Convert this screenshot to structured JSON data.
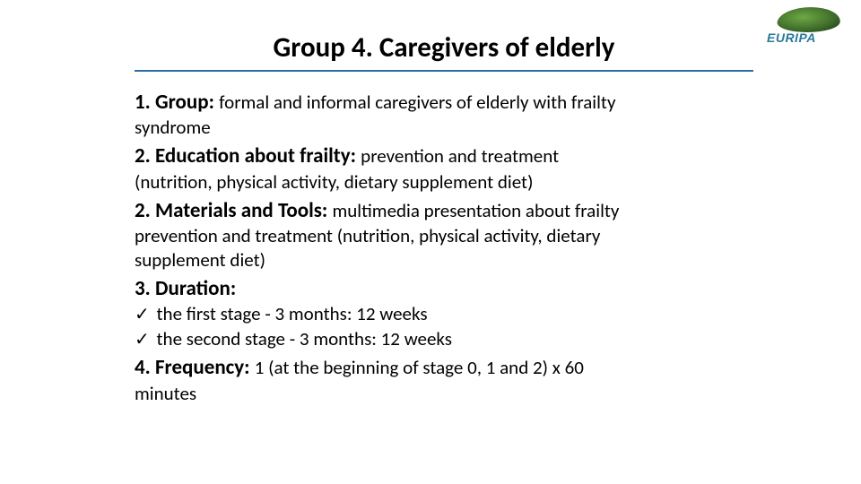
{
  "logo": {
    "text": "EURIPA"
  },
  "title": "Group 4. Caregivers of elderly",
  "items": [
    {
      "label": "1. Group: ",
      "after": "formal and informal caregivers of elderly with frailty",
      "cont": [
        "syndrome"
      ]
    },
    {
      "label": "2. Education about frailty: ",
      "after": "prevention and treatment",
      "cont": [
        "(nutrition, physical activity, dietary supplement diet)"
      ]
    },
    {
      "label": "2. Materials and Tools: ",
      "after": "multimedia presentation about frailty",
      "cont": [
        "prevention and treatment (nutrition, physical activity, dietary",
        "supplement diet)"
      ]
    },
    {
      "label": "3. Duration:",
      "after": "",
      "checks": [
        "the first stage - 3 months: 12 weeks",
        "the second stage - 3 months: 12 weeks"
      ]
    },
    {
      "label": "4. Frequency: ",
      "after": "1 (at the beginning of stage 0, 1 and 2) x 60",
      "cont": [
        "minutes"
      ]
    }
  ],
  "style": {
    "background": "#ffffff",
    "text_color": "#000000",
    "underline_color": "#2e6ca4",
    "title_fontsize": 31,
    "label_fontsize": 23,
    "body_fontsize": 21,
    "logo_green_light": "#6fa843",
    "logo_green_dark": "#1a3015",
    "logo_text_color": "#2a7a9a"
  }
}
